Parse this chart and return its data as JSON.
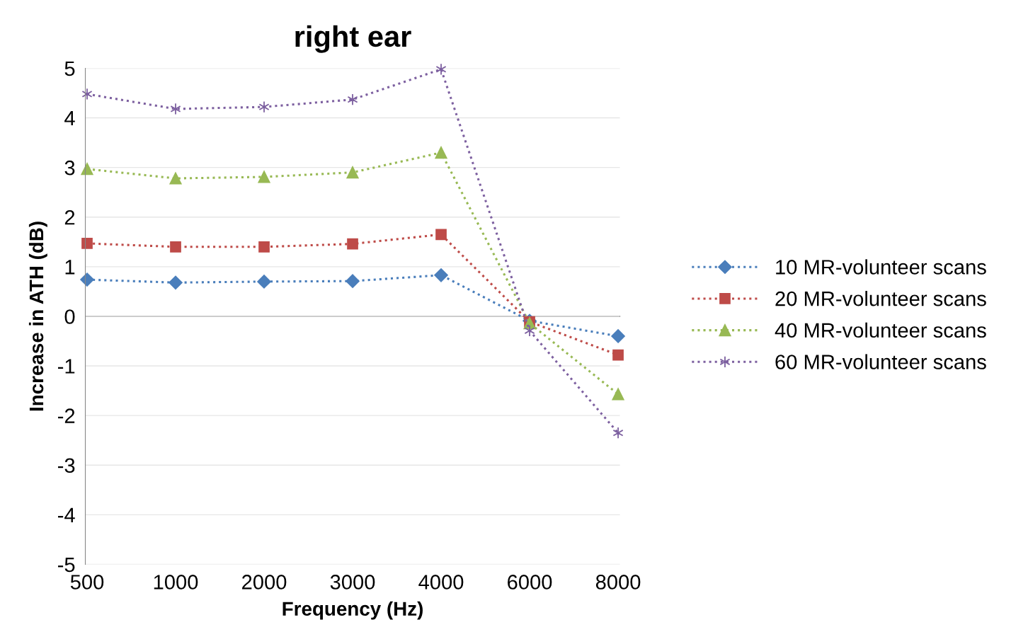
{
  "chart_data": {
    "type": "line",
    "title": "right ear",
    "xlabel": "Frequency (Hz)",
    "ylabel": "Increase in ATH (dB)",
    "categories": [
      "500",
      "1000",
      "2000",
      "3000",
      "4000",
      "6000",
      "8000"
    ],
    "series": [
      {
        "name": "10 MR-volunteer scans",
        "color": "#4a7ebb",
        "marker": "diamond",
        "values": [
          0.74,
          0.68,
          0.7,
          0.71,
          0.83,
          -0.09,
          -0.4
        ]
      },
      {
        "name": "20 MR-volunteer scans",
        "color": "#be4b48",
        "marker": "square",
        "values": [
          1.47,
          1.4,
          1.4,
          1.46,
          1.65,
          -0.11,
          -0.78
        ]
      },
      {
        "name": "40 MR-volunteer scans",
        "color": "#98b954",
        "marker": "triangle",
        "values": [
          2.97,
          2.78,
          2.81,
          2.9,
          3.3,
          -0.14,
          -1.57
        ]
      },
      {
        "name": "60 MR-volunteer scans",
        "color": "#7d60a0",
        "marker": "cross",
        "values": [
          4.48,
          4.18,
          4.22,
          4.37,
          4.98,
          -0.29,
          -2.35
        ]
      }
    ],
    "ylim": [
      -5,
      5
    ],
    "yticks": [
      -5,
      -4,
      -3,
      -2,
      -1,
      0,
      1,
      2,
      3,
      4,
      5
    ],
    "grid": "y",
    "legend": "right",
    "line_style": "dotted"
  }
}
